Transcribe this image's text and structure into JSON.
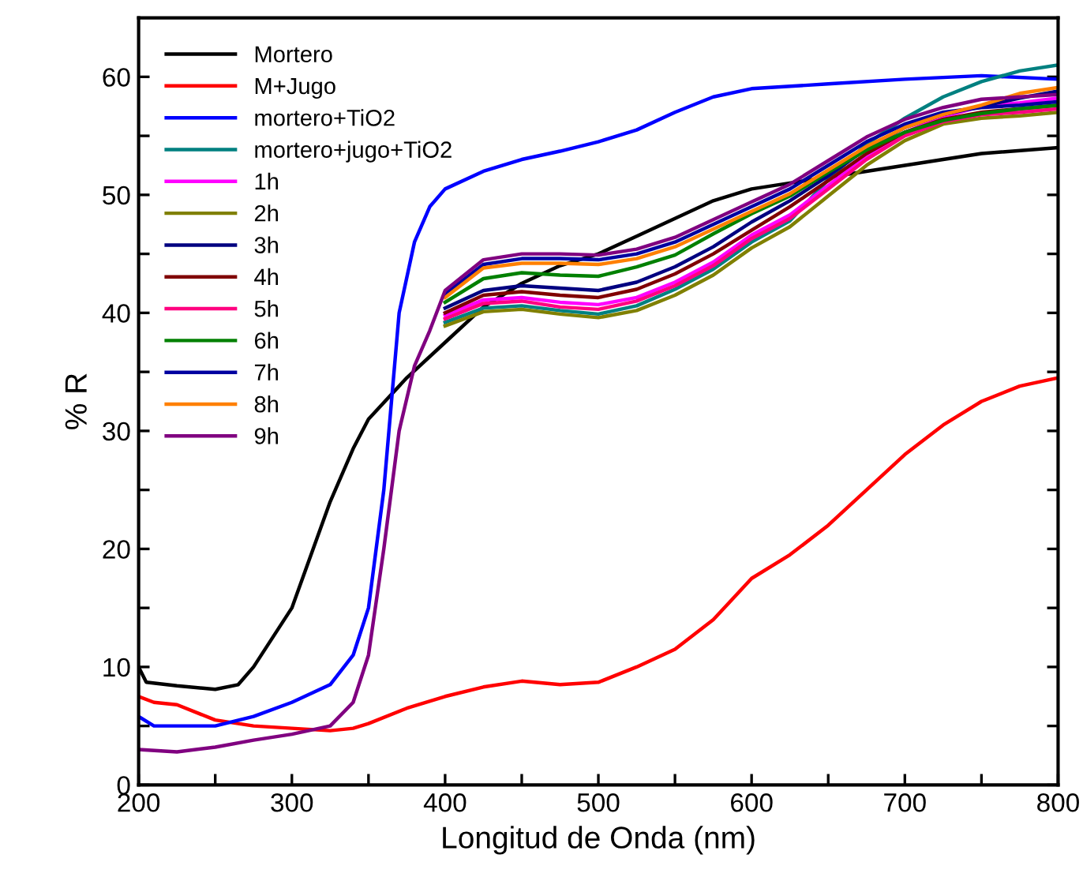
{
  "chart_data": {
    "type": "line",
    "xlabel": "Longitud de Onda (nm)",
    "ylabel": "% R",
    "xlim": [
      200,
      800
    ],
    "ylim": [
      0,
      65
    ],
    "xticks": [
      200,
      {
        "value": 250,
        "label": null
      },
      300,
      {
        "value": 350,
        "label": null
      },
      400,
      {
        "value": 450,
        "label": null
      },
      500,
      {
        "value": 550,
        "label": null
      },
      600,
      {
        "value": 650,
        "label": null
      },
      700,
      {
        "value": 750,
        "label": null
      },
      800
    ],
    "yticks": [
      0,
      {
        "value": 5,
        "label": null
      },
      10,
      {
        "value": 15,
        "label": null
      },
      20,
      {
        "value": 25,
        "label": null
      },
      30,
      {
        "value": 35,
        "label": null
      },
      40,
      {
        "value": 45,
        "label": null
      },
      50,
      {
        "value": 55,
        "label": null
      },
      60
    ],
    "grid": false,
    "legend": "top left",
    "line_style": "solid",
    "marker": "none",
    "x": [
      200,
      225,
      250,
      275,
      300,
      325,
      340,
      350,
      360,
      370,
      380,
      390,
      400,
      425,
      450,
      475,
      500,
      525,
      550,
      575,
      600,
      625,
      650,
      675,
      700,
      725,
      750,
      775,
      800
    ],
    "series": [
      {
        "name": "Mortero",
        "color": "#000000",
        "x": [
          200,
          205,
          225,
          250,
          265,
          275,
          300,
          325,
          340,
          350,
          375,
          400,
          425,
          450,
          475,
          500,
          525,
          550,
          575,
          600,
          625,
          650,
          675,
          700,
          750,
          800
        ],
        "values": [
          10,
          8.7,
          8.4,
          8.1,
          8.5,
          10,
          15,
          24,
          28.5,
          31,
          34.5,
          37.5,
          40.5,
          42.5,
          44,
          45,
          46.5,
          48,
          49.5,
          50.5,
          51,
          51.5,
          52,
          52.5,
          53.5,
          54
        ]
      },
      {
        "name": "M+Jugo",
        "color": "#ff0000",
        "x": [
          200,
          210,
          225,
          250,
          275,
          300,
          325,
          340,
          350,
          375,
          400,
          425,
          450,
          475,
          500,
          525,
          550,
          575,
          600,
          625,
          650,
          675,
          700,
          725,
          750,
          775,
          800
        ],
        "values": [
          7.5,
          7,
          6.8,
          5.5,
          5,
          4.8,
          4.6,
          4.8,
          5.2,
          6.5,
          7.5,
          8.3,
          8.8,
          8.5,
          8.7,
          10,
          11.5,
          14,
          17.5,
          19.5,
          22,
          25,
          28,
          30.5,
          32.5,
          33.8,
          34.5
        ]
      },
      {
        "name": "mortero+TiO2",
        "color": "#0000ff",
        "x": [
          200,
          210,
          250,
          275,
          300,
          325,
          340,
          350,
          360,
          370,
          380,
          390,
          400,
          425,
          450,
          475,
          500,
          525,
          550,
          575,
          600,
          650,
          700,
          750,
          800
        ],
        "values": [
          5.8,
          5,
          5,
          5.8,
          7,
          8.5,
          11,
          15,
          25,
          40,
          46,
          49,
          50.5,
          52,
          53,
          53.7,
          54.5,
          55.5,
          57,
          58.3,
          59,
          59.4,
          59.8,
          60.1,
          59.8
        ]
      },
      {
        "name": "mortero+jugo+TiO2",
        "color": "#008080",
        "values": [
          null,
          null,
          null,
          null,
          null,
          null,
          null,
          null,
          null,
          null,
          null,
          null,
          39.2,
          40.4,
          40.6,
          40.2,
          39.9,
          40.6,
          42,
          43.7,
          46,
          47.8,
          51.3,
          54.3,
          56.5,
          58.3,
          59.6,
          60.5,
          61
        ]
      },
      {
        "name": "1h",
        "color": "#ff00ff",
        "values": [
          null,
          null,
          null,
          null,
          null,
          null,
          null,
          null,
          null,
          null,
          null,
          null,
          39.8,
          41.1,
          41.3,
          40.9,
          40.7,
          41.3,
          42.6,
          44.3,
          46.6,
          48.3,
          50.8,
          53.3,
          55.3,
          56.6,
          57.5,
          57.8,
          58.2
        ]
      },
      {
        "name": "2h",
        "color": "#808000",
        "values": [
          null,
          null,
          null,
          null,
          null,
          null,
          null,
          null,
          null,
          null,
          null,
          null,
          38.9,
          40.1,
          40.3,
          39.9,
          39.6,
          40.2,
          41.5,
          43.2,
          45.5,
          47.3,
          49.9,
          52.5,
          54.6,
          56,
          56.5,
          56.7,
          57
        ]
      },
      {
        "name": "3h",
        "color": "#000080",
        "values": [
          null,
          null,
          null,
          null,
          null,
          null,
          null,
          null,
          null,
          null,
          null,
          null,
          40.4,
          41.9,
          42.3,
          42.1,
          41.9,
          42.6,
          43.9,
          45.6,
          47.7,
          49.5,
          51.6,
          53.9,
          55.7,
          56.8,
          57.5,
          58.2,
          58.8
        ]
      },
      {
        "name": "4h",
        "color": "#800000",
        "values": [
          null,
          null,
          null,
          null,
          null,
          null,
          null,
          null,
          null,
          null,
          null,
          null,
          40,
          41.5,
          41.8,
          41.5,
          41.3,
          42,
          43.3,
          45,
          47,
          49,
          51.2,
          53.5,
          55.3,
          56.4,
          57,
          57.3,
          57.6
        ]
      },
      {
        "name": "5h",
        "color": "#ff0080",
        "values": [
          null,
          null,
          null,
          null,
          null,
          null,
          null,
          null,
          null,
          null,
          null,
          null,
          39.5,
          40.8,
          41,
          40.5,
          40.3,
          41,
          42.3,
          44,
          46.3,
          48,
          50.5,
          53,
          55,
          56.2,
          56.8,
          57,
          57.3
        ]
      },
      {
        "name": "6h",
        "color": "#008000",
        "values": [
          null,
          null,
          null,
          null,
          null,
          null,
          null,
          null,
          null,
          null,
          null,
          null,
          40.9,
          42.9,
          43.4,
          43.2,
          43.1,
          43.9,
          44.9,
          46.7,
          48.4,
          49.9,
          51.9,
          53.8,
          55.3,
          56.3,
          56.9,
          57.3,
          57.6
        ]
      },
      {
        "name": "7h",
        "color": "#0000a0",
        "values": [
          null,
          null,
          null,
          null,
          null,
          null,
          null,
          null,
          null,
          null,
          null,
          null,
          41.6,
          44.1,
          44.6,
          44.6,
          44.5,
          45,
          46,
          47.5,
          49,
          50.5,
          52.5,
          54.5,
          56,
          57,
          57.4,
          57.6,
          57.9
        ]
      },
      {
        "name": "8h",
        "color": "#ff8000",
        "values": [
          null,
          null,
          null,
          null,
          null,
          null,
          null,
          null,
          null,
          null,
          null,
          null,
          41.3,
          43.8,
          44.2,
          44.2,
          44.1,
          44.6,
          45.6,
          47.1,
          48.6,
          50.1,
          52.1,
          54.1,
          55.7,
          56.8,
          57.6,
          58.6,
          59.1
        ]
      },
      {
        "name": "9h",
        "color": "#800080",
        "values": [
          3,
          2.8,
          3.2,
          3.8,
          4.3,
          5,
          7,
          11,
          20,
          30,
          35.5,
          38.5,
          41.9,
          44.5,
          45,
          45,
          44.9,
          45.4,
          46.4,
          47.9,
          49.4,
          50.9,
          52.9,
          54.9,
          56.4,
          57.4,
          58.1,
          58.3,
          58.5
        ]
      }
    ]
  }
}
